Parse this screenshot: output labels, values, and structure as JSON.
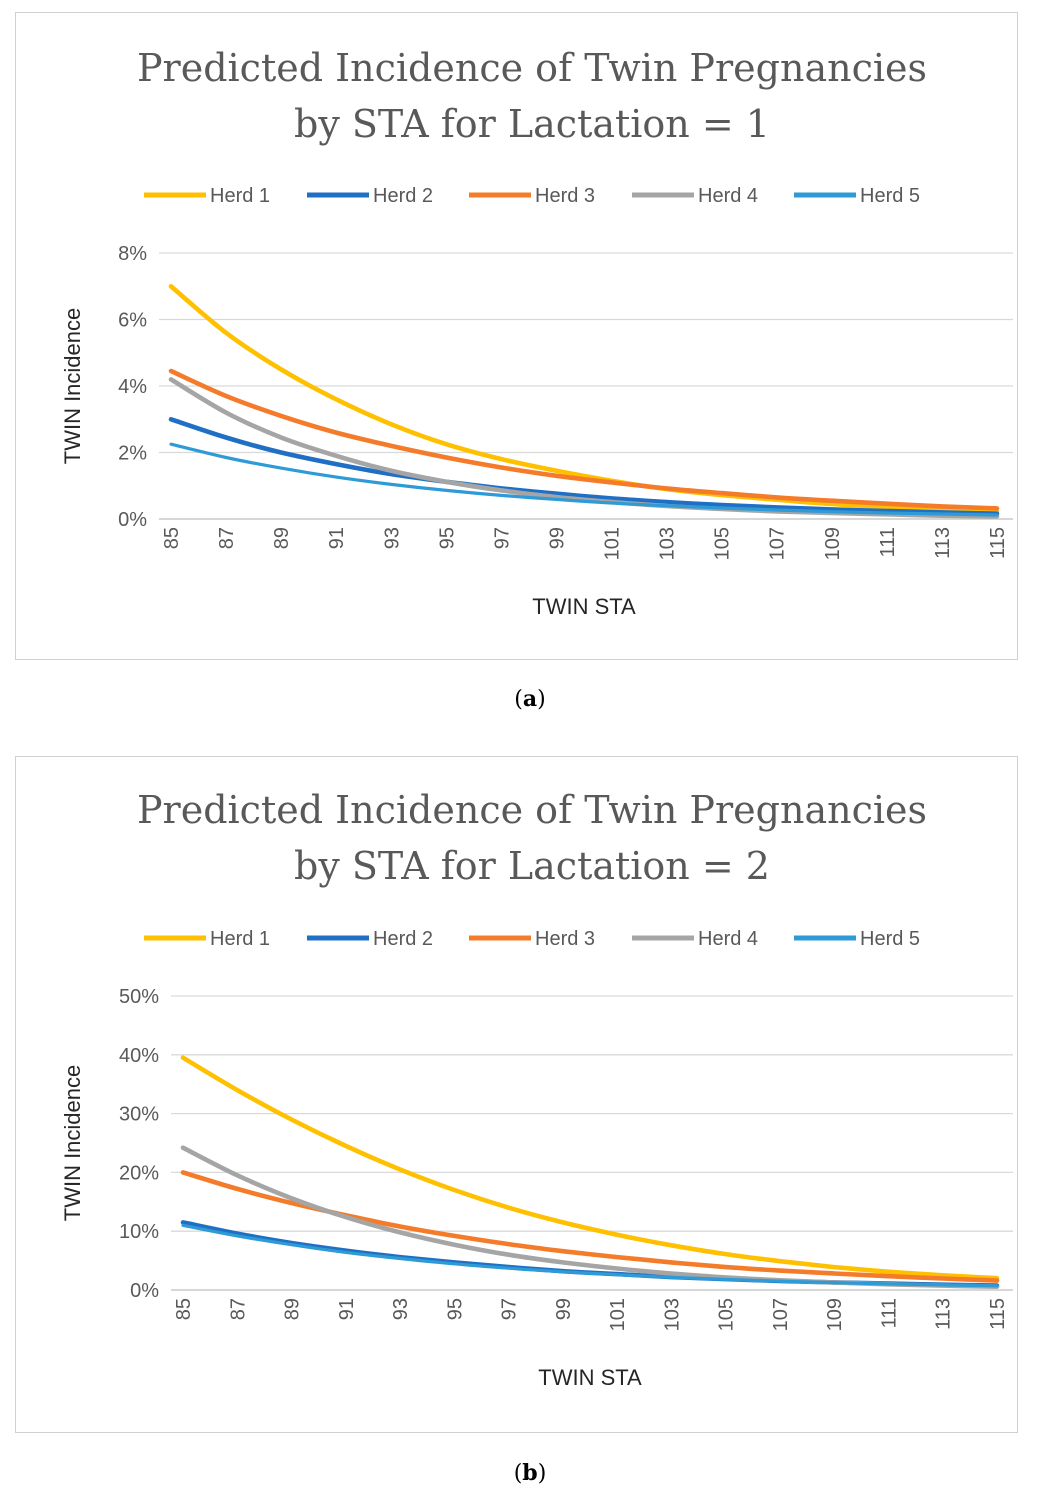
{
  "captions": {
    "a": "a",
    "b": "b"
  },
  "colors": {
    "Herd 1": "#FFC000",
    "Herd 2": "#1F6FC5",
    "Herd 3": "#F47B2A",
    "Herd 4": "#A5A5A5",
    "Herd 5": "#2E9AD6"
  },
  "chart_data": [
    {
      "type": "line",
      "title": [
        "Predicted Incidence of Twin Pregnancies",
        "by STA for Lactation = 1"
      ],
      "xlabel": "TWIN STA",
      "ylabel": "TWIN Incidence",
      "x_ticks": [
        "85",
        "87",
        "89",
        "91",
        "93",
        "95",
        "97",
        "99",
        "101",
        "103",
        "105",
        "107",
        "109",
        "111",
        "113",
        "115"
      ],
      "y_ticks": [
        "0%",
        "2%",
        "4%",
        "6%",
        "8%"
      ],
      "ylim": [
        0,
        8
      ],
      "xlim": [
        85,
        115
      ],
      "grid": true,
      "legend": "top",
      "x": [
        85,
        87,
        89,
        91,
        93,
        95,
        97,
        99,
        101,
        103,
        105,
        107,
        109,
        111,
        113,
        115
      ],
      "series": [
        {
          "name": "Herd 1",
          "values": [
            7.0,
            5.6,
            4.5,
            3.6,
            2.85,
            2.25,
            1.8,
            1.45,
            1.15,
            0.9,
            0.72,
            0.58,
            0.45,
            0.36,
            0.28,
            0.22
          ]
        },
        {
          "name": "Herd 2",
          "values": [
            3.0,
            2.45,
            2.0,
            1.65,
            1.35,
            1.12,
            0.92,
            0.76,
            0.62,
            0.51,
            0.42,
            0.35,
            0.29,
            0.24,
            0.2,
            0.16
          ]
        },
        {
          "name": "Herd 3",
          "values": [
            4.45,
            3.7,
            3.1,
            2.6,
            2.2,
            1.85,
            1.55,
            1.3,
            1.1,
            0.92,
            0.78,
            0.65,
            0.55,
            0.46,
            0.38,
            0.32
          ]
        },
        {
          "name": "Herd 4",
          "values": [
            4.2,
            3.2,
            2.45,
            1.9,
            1.45,
            1.12,
            0.86,
            0.66,
            0.51,
            0.39,
            0.3,
            0.23,
            0.18,
            0.14,
            0.1,
            0.08
          ]
        },
        {
          "name": "Herd 5",
          "values": [
            2.25,
            1.85,
            1.53,
            1.26,
            1.04,
            0.86,
            0.71,
            0.59,
            0.48,
            0.4,
            0.33,
            0.27,
            0.22,
            0.18,
            0.15,
            0.12
          ]
        }
      ]
    },
    {
      "type": "line",
      "title": [
        "Predicted Incidence of Twin Pregnancies",
        "by STA for Lactation = 2"
      ],
      "xlabel": "TWIN STA",
      "ylabel": "TWIN Incidence",
      "x_ticks": [
        "85",
        "87",
        "89",
        "91",
        "93",
        "95",
        "97",
        "99",
        "101",
        "103",
        "105",
        "107",
        "109",
        "111",
        "113",
        "115"
      ],
      "y_ticks": [
        "0%",
        "10%",
        "20%",
        "30%",
        "40%",
        "50%"
      ],
      "ylim": [
        0,
        50
      ],
      "xlim": [
        85,
        115
      ],
      "grid": true,
      "legend": "top",
      "x": [
        85,
        87,
        89,
        91,
        93,
        95,
        97,
        99,
        101,
        103,
        105,
        107,
        109,
        111,
        113,
        115
      ],
      "series": [
        {
          "name": "Herd 1",
          "values": [
            39.5,
            34.0,
            29.0,
            24.5,
            20.5,
            17.0,
            14.0,
            11.5,
            9.4,
            7.6,
            6.1,
            4.9,
            3.9,
            3.1,
            2.5,
            2.0
          ]
        },
        {
          "name": "Herd 2",
          "values": [
            11.5,
            9.6,
            8.0,
            6.7,
            5.6,
            4.7,
            3.9,
            3.2,
            2.7,
            2.2,
            1.85,
            1.55,
            1.3,
            1.08,
            0.9,
            0.75
          ]
        },
        {
          "name": "Herd 3",
          "values": [
            20.0,
            17.2,
            14.8,
            12.7,
            10.8,
            9.2,
            7.8,
            6.6,
            5.6,
            4.7,
            3.9,
            3.3,
            2.8,
            2.35,
            1.95,
            1.6
          ]
        },
        {
          "name": "Herd 4",
          "values": [
            24.2,
            19.5,
            15.6,
            12.4,
            9.8,
            7.7,
            6.0,
            4.7,
            3.65,
            2.8,
            2.15,
            1.65,
            1.27,
            0.97,
            0.74,
            0.56
          ]
        },
        {
          "name": "Herd 5",
          "values": [
            11.0,
            9.2,
            7.7,
            6.4,
            5.35,
            4.45,
            3.7,
            3.1,
            2.6,
            2.15,
            1.8,
            1.5,
            1.25,
            1.04,
            0.87,
            0.72
          ]
        }
      ]
    }
  ]
}
